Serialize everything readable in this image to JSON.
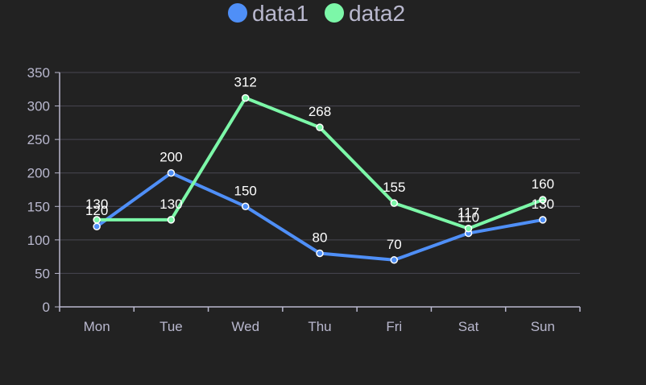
{
  "chart_data": {
    "type": "line",
    "categories": [
      "Mon",
      "Tue",
      "Wed",
      "Thu",
      "Fri",
      "Sat",
      "Sun"
    ],
    "series": [
      {
        "name": "data1",
        "values": [
          120,
          200,
          150,
          80,
          70,
          110,
          130
        ],
        "color": "#4f8ff7"
      },
      {
        "name": "data2",
        "values": [
          130,
          130,
          312,
          268,
          155,
          117,
          160
        ],
        "color": "#7cf7a8"
      }
    ],
    "ylim": [
      0,
      350
    ],
    "yticks": [
      0,
      50,
      100,
      150,
      200,
      250,
      300,
      350
    ],
    "grid": true,
    "legend": "top-center",
    "data_labels": true,
    "colors": {
      "background": "#222222",
      "axis": "#b9b8ce",
      "grid": "#484753",
      "label": "#ffffff"
    }
  }
}
